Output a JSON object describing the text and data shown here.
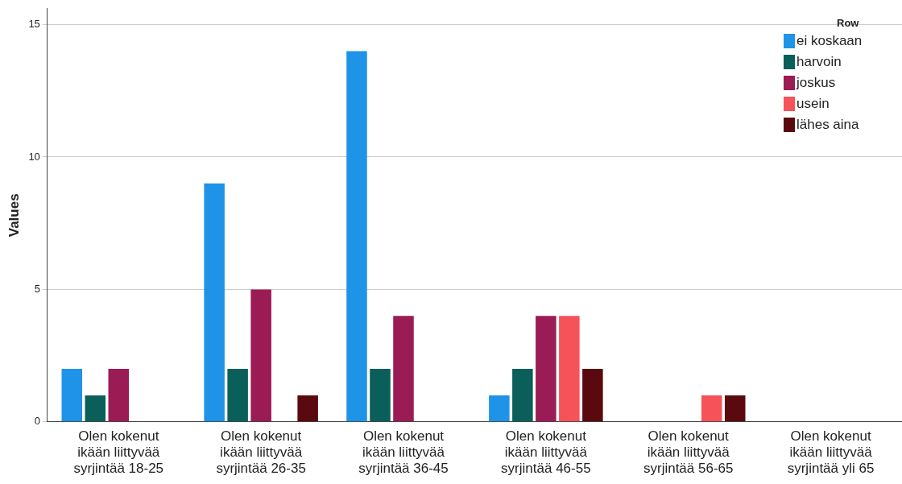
{
  "chart_data": {
    "type": "bar",
    "ylabel": "Values",
    "legend_title": "Row",
    "legend": "top right",
    "grid": "y",
    "categories": [
      "Olen kokenut ikään liittyvää syrjintää 18-25",
      "Olen kokenut ikään liittyvää syrjintää 26-35",
      "Olen kokenut ikään liittyvää syrjintää 36-45",
      "Olen kokenut ikään liittyvää syrjintää 46-55",
      "Olen kokenut ikään liittyvää syrjintää 56-65",
      "Olen kokenut ikään liittyvää syrjintää yli 65"
    ],
    "ylim": [
      0,
      15.6
    ],
    "yticks": [
      0,
      5,
      10,
      15
    ],
    "series": [
      {
        "name": "ei koskaan",
        "color": "#1f93e8",
        "values": [
          2,
          9,
          14,
          1,
          0,
          0
        ]
      },
      {
        "name": "harvoin",
        "color": "#0b5f5b",
        "values": [
          1,
          2,
          2,
          2,
          0,
          0
        ]
      },
      {
        "name": "joskus",
        "color": "#9b1b55",
        "values": [
          2,
          5,
          4,
          4,
          0,
          0
        ]
      },
      {
        "name": "usein",
        "color": "#f5525a",
        "values": [
          0,
          0,
          0,
          4,
          1,
          0
        ]
      },
      {
        "name": "lähes aina",
        "color": "#5a0a0e",
        "values": [
          0,
          1,
          0,
          2,
          1,
          0
        ]
      }
    ]
  }
}
